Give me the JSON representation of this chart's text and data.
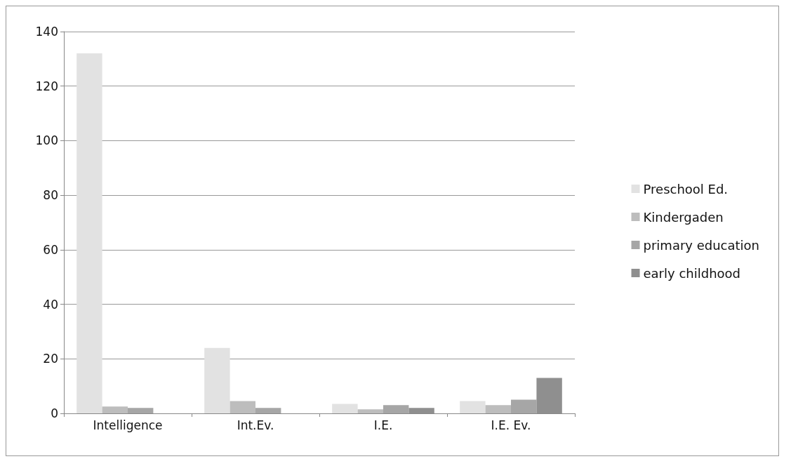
{
  "chart_data": {
    "type": "bar",
    "categories": [
      "Intelligence",
      "Int.Ev.",
      "I.E.",
      "I.E. Ev."
    ],
    "series": [
      {
        "name": "Preschool Ed.",
        "color": "#e2e2e2",
        "values": [
          132,
          24,
          3.5,
          4.5
        ]
      },
      {
        "name": "Kindergaden",
        "color": "#bdbdbd",
        "values": [
          2.5,
          4.5,
          1.5,
          3
        ]
      },
      {
        "name": "primary education",
        "color": "#a6a6a6",
        "values": [
          2,
          2,
          3,
          5
        ]
      },
      {
        "name": "early childhood",
        "color": "#8f8f8f",
        "values": [
          0,
          0,
          2,
          13
        ]
      }
    ],
    "ylim": [
      0,
      140
    ],
    "yticks": [
      0,
      20,
      40,
      60,
      80,
      100,
      120,
      140
    ],
    "grid": "y",
    "legend": "right"
  }
}
